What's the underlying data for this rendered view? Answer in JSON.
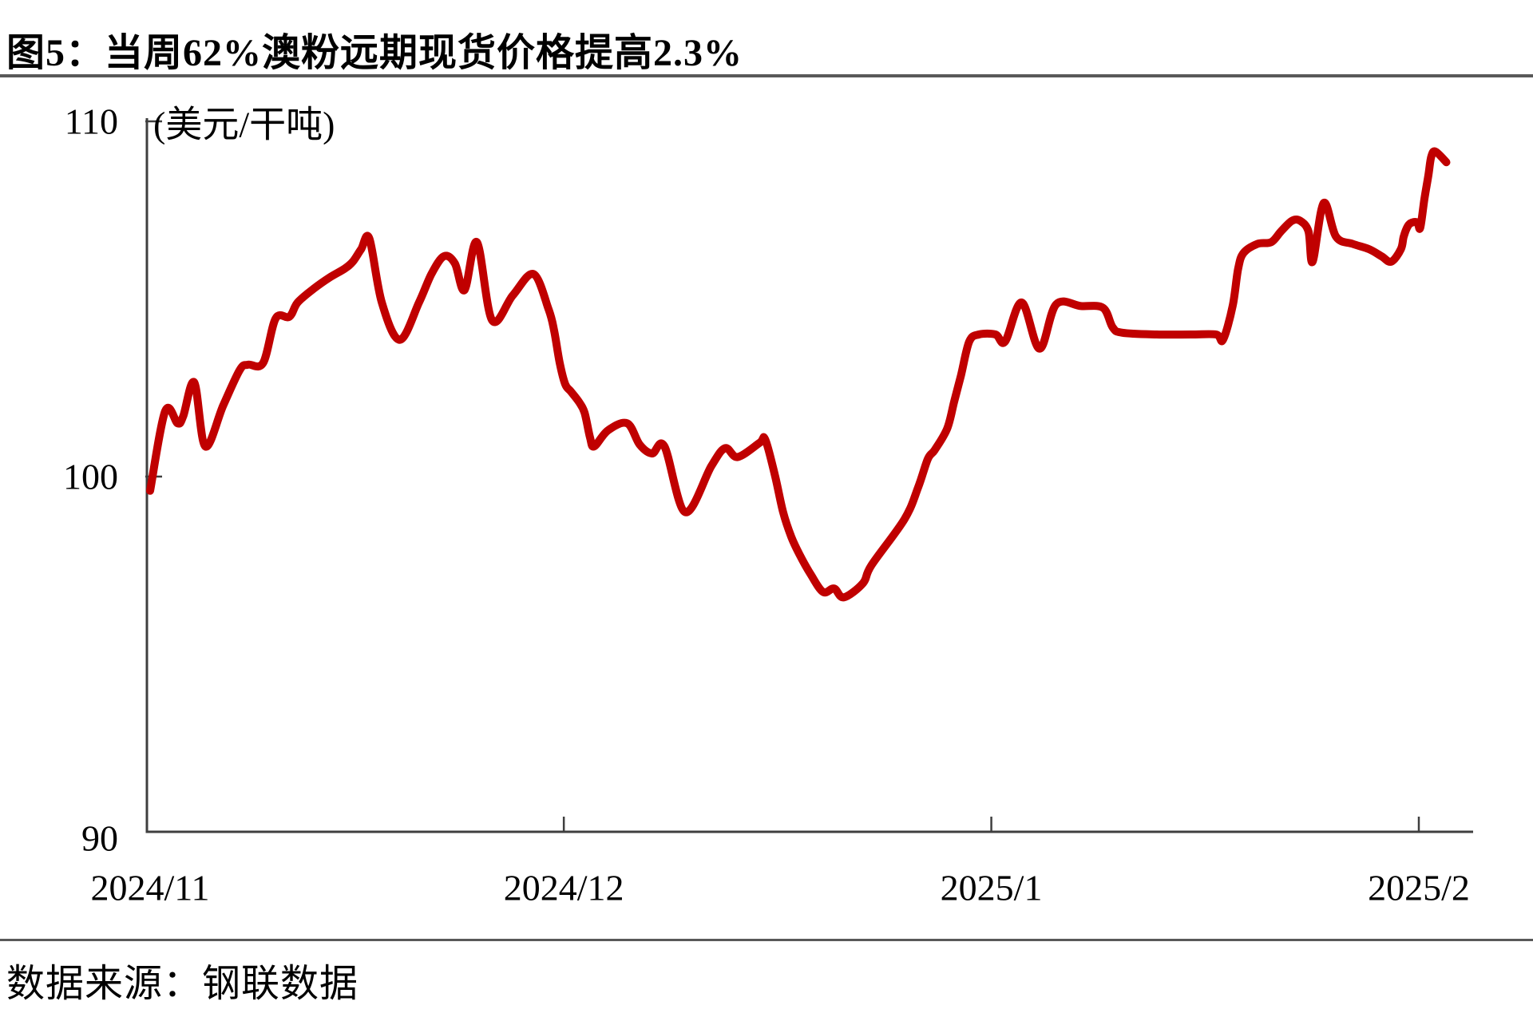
{
  "chart_data": {
    "type": "line",
    "title": "图5：当周62%澳粉远期现货价格提高2.3%",
    "unit_label": "(美元/干吨)",
    "source": "数据来源：钢联数据",
    "line_color": "#c00000",
    "axis_color": "#3f3f3f",
    "divider_color": "#595959",
    "grid": false,
    "legend": "none",
    "y_axis": {
      "min": 90,
      "max": 110,
      "ticks": [
        {
          "label": "110",
          "value": 110
        },
        {
          "label": "100",
          "value": 100
        },
        {
          "label": "90",
          "value": 90
        }
      ]
    },
    "x_axis": {
      "ticks": [
        {
          "label": "2024/11",
          "day": 0
        },
        {
          "label": "2024/12",
          "day": 30
        },
        {
          "label": "2025/1",
          "day": 61
        },
        {
          "label": "2025/2",
          "day": 92
        }
      ],
      "days_span": 92
    },
    "series": [
      {
        "name": "62%澳粉远期现货价格",
        "points": [
          [
            0,
            99.6
          ],
          [
            1.1,
            101.85
          ],
          [
            2,
            101.5
          ],
          [
            2.4,
            101.7
          ],
          [
            3.2,
            102.65
          ],
          [
            4,
            100.85
          ],
          [
            5.3,
            102.0
          ],
          [
            6.5,
            103.0
          ],
          [
            7.1,
            103.15
          ],
          [
            8.2,
            103.2
          ],
          [
            9.1,
            104.45
          ],
          [
            10.1,
            104.5
          ],
          [
            10.7,
            104.9
          ],
          [
            11.9,
            105.3
          ],
          [
            13,
            105.6
          ],
          [
            14.1,
            105.85
          ],
          [
            14.7,
            106.05
          ],
          [
            15.3,
            106.4
          ],
          [
            15.9,
            106.7
          ],
          [
            16.8,
            104.9
          ],
          [
            18.1,
            103.85
          ],
          [
            19.5,
            104.9
          ],
          [
            20.4,
            105.7
          ],
          [
            21.3,
            106.2
          ],
          [
            22.1,
            106.0
          ],
          [
            22.8,
            105.25
          ],
          [
            23.7,
            106.6
          ],
          [
            24.8,
            104.4
          ],
          [
            26.3,
            105.1
          ],
          [
            27.8,
            105.7
          ],
          [
            28.9,
            104.7
          ],
          [
            29.3,
            104.1
          ],
          [
            29.7,
            103.2
          ],
          [
            30.1,
            102.6
          ],
          [
            30.5,
            102.4
          ],
          [
            31.1,
            102.1
          ],
          [
            31.5,
            101.8
          ],
          [
            31.9,
            101.1
          ],
          [
            32.2,
            100.85
          ],
          [
            33.2,
            101.3
          ],
          [
            34.6,
            101.5
          ],
          [
            35.5,
            100.9
          ],
          [
            36.4,
            100.65
          ],
          [
            37.3,
            100.85
          ],
          [
            38.8,
            99.0
          ],
          [
            40.7,
            100.3
          ],
          [
            41.7,
            100.8
          ],
          [
            42.6,
            100.55
          ],
          [
            44.2,
            100.95
          ],
          [
            44.6,
            101.05
          ],
          [
            45.3,
            100.05
          ],
          [
            45.9,
            99.0
          ],
          [
            46.5,
            98.3
          ],
          [
            47.1,
            97.8
          ],
          [
            47.9,
            97.25
          ],
          [
            48.8,
            96.75
          ],
          [
            49.6,
            96.85
          ],
          [
            50.3,
            96.6
          ],
          [
            51.7,
            97.0
          ],
          [
            52.3,
            97.5
          ],
          [
            54.7,
            98.8
          ],
          [
            55.7,
            99.7
          ],
          [
            56.4,
            100.5
          ],
          [
            56.9,
            100.75
          ],
          [
            57.8,
            101.35
          ],
          [
            58.3,
            102.1
          ],
          [
            58.8,
            102.85
          ],
          [
            59.4,
            103.8
          ],
          [
            60.1,
            104.0
          ],
          [
            61.3,
            104.0
          ],
          [
            62,
            103.8
          ],
          [
            63.2,
            104.9
          ],
          [
            64.5,
            103.6
          ],
          [
            65.7,
            104.85
          ],
          [
            67.5,
            104.8
          ],
          [
            69.1,
            104.75
          ],
          [
            69.8,
            104.2
          ],
          [
            70.5,
            104.05
          ],
          [
            73,
            104.0
          ],
          [
            75.5,
            104.0
          ],
          [
            77.3,
            104.0
          ],
          [
            77.8,
            103.85
          ],
          [
            78.5,
            104.8
          ],
          [
            78.9,
            105.85
          ],
          [
            79.3,
            106.3
          ],
          [
            80.3,
            106.55
          ],
          [
            81.3,
            106.6
          ],
          [
            82,
            106.9
          ],
          [
            82.8,
            107.2
          ],
          [
            83.4,
            107.2
          ],
          [
            84,
            106.9
          ],
          [
            84.3,
            106.05
          ],
          [
            85.1,
            107.7
          ],
          [
            86,
            106.75
          ],
          [
            87.2,
            106.55
          ],
          [
            88.4,
            106.4
          ],
          [
            89.3,
            106.2
          ],
          [
            90,
            106.05
          ],
          [
            90.7,
            106.4
          ],
          [
            90.9,
            106.75
          ],
          [
            91.2,
            107.05
          ],
          [
            91.5,
            107.15
          ],
          [
            91.9,
            107.15
          ],
          [
            92.1,
            107.0
          ],
          [
            92.4,
            107.8
          ],
          [
            92.7,
            108.5
          ],
          [
            92.9,
            109.0
          ],
          [
            93.2,
            109.15
          ],
          [
            94,
            108.85
          ]
        ]
      }
    ]
  }
}
